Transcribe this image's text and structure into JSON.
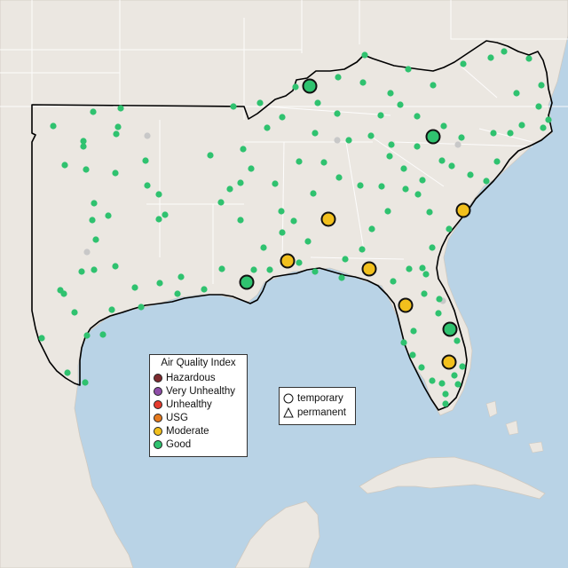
{
  "colors": {
    "water": "#b9d3e6",
    "land": "#ebe7e1",
    "region": "#efebe5",
    "border": "#ffffff",
    "outline": "#000000"
  },
  "legend": {
    "title": "Air Quality Index",
    "items": [
      {
        "label": "Hazardous",
        "color": "#7e2b2f"
      },
      {
        "label": "Very Unhealthy",
        "color": "#8f4ea8"
      },
      {
        "label": "Unhealthy",
        "color": "#e53b2e"
      },
      {
        "label": "USG",
        "color": "#e57a1e"
      },
      {
        "label": "Moderate",
        "color": "#f2c01d"
      },
      {
        "label": "Good",
        "color": "#2fc26f"
      }
    ]
  },
  "shape_legend": {
    "items": [
      {
        "label": "temporary",
        "icon": "circle-icon"
      },
      {
        "label": "permanent",
        "icon": "triangle-icon"
      }
    ]
  },
  "monitors": {
    "large_moderate": [
      [
        370,
        247
      ],
      [
        324,
        294
      ],
      [
        416,
        303
      ],
      [
        457,
        344
      ],
      [
        522,
        237
      ],
      [
        506,
        408
      ]
    ],
    "large_good": [
      [
        349,
        97
      ],
      [
        488,
        154
      ],
      [
        278,
        318
      ],
      [
        507,
        371
      ]
    ],
    "small_good": [
      [
        411,
        62
      ],
      [
        381,
        87
      ],
      [
        333,
        98
      ],
      [
        358,
        116
      ],
      [
        380,
        128
      ],
      [
        409,
        93
      ],
      [
        460,
        78
      ],
      [
        440,
        105
      ],
      [
        488,
        96
      ],
      [
        522,
        72
      ],
      [
        553,
        65
      ],
      [
        596,
        66
      ],
      [
        568,
        58
      ],
      [
        610,
        96
      ],
      [
        582,
        105
      ],
      [
        607,
        120
      ],
      [
        618,
        135
      ],
      [
        588,
        141
      ],
      [
        556,
        150
      ],
      [
        520,
        155
      ],
      [
        500,
        142
      ],
      [
        470,
        131
      ],
      [
        451,
        118
      ],
      [
        429,
        130
      ],
      [
        418,
        153
      ],
      [
        393,
        158
      ],
      [
        355,
        150
      ],
      [
        318,
        132
      ],
      [
        301,
        144
      ],
      [
        274,
        168
      ],
      [
        283,
        190
      ],
      [
        271,
        206
      ],
      [
        259,
        213
      ],
      [
        249,
        228
      ],
      [
        271,
        248
      ],
      [
        297,
        279
      ],
      [
        318,
        262
      ],
      [
        331,
        249
      ],
      [
        353,
        218
      ],
      [
        382,
        200
      ],
      [
        406,
        209
      ],
      [
        430,
        210
      ],
      [
        457,
        213
      ],
      [
        476,
        203
      ],
      [
        509,
        187
      ],
      [
        530,
        197
      ],
      [
        548,
        204
      ],
      [
        560,
        182
      ],
      [
        575,
        150
      ],
      [
        612,
        144
      ],
      [
        498,
        181
      ],
      [
        455,
        190
      ],
      [
        439,
        176
      ],
      [
        470,
        165
      ],
      [
        441,
        163
      ],
      [
        365,
        183
      ],
      [
        337,
        182
      ],
      [
        310,
        207
      ],
      [
        317,
        238
      ],
      [
        347,
        272
      ],
      [
        389,
        292
      ],
      [
        408,
        281
      ],
      [
        419,
        258
      ],
      [
        437,
        238
      ],
      [
        471,
        219
      ],
      [
        484,
        239
      ],
      [
        506,
        258
      ],
      [
        487,
        279
      ],
      [
        476,
        302
      ],
      [
        478,
        331
      ],
      [
        480,
        309
      ],
      [
        461,
        303
      ],
      [
        443,
        317
      ],
      [
        385,
        313
      ],
      [
        355,
        306
      ],
      [
        337,
        296
      ],
      [
        304,
        304
      ],
      [
        286,
        304
      ],
      [
        250,
        303
      ],
      [
        230,
        326
      ],
      [
        204,
        312
      ],
      [
        180,
        319
      ],
      [
        152,
        324
      ],
      [
        130,
        300
      ],
      [
        106,
        304
      ],
      [
        92,
        306
      ],
      [
        72,
        331
      ],
      [
        68,
        327
      ],
      [
        47,
        381
      ],
      [
        76,
        420
      ],
      [
        96,
        431
      ],
      [
        116,
        377
      ],
      [
        98,
        378
      ],
      [
        84,
        352
      ],
      [
        126,
        349
      ],
      [
        159,
        346
      ],
      [
        200,
        331
      ],
      [
        179,
        247
      ],
      [
        186,
        242
      ],
      [
        166,
        209
      ],
      [
        179,
        219
      ],
      [
        130,
        195
      ],
      [
        97,
        191
      ],
      [
        73,
        186
      ],
      [
        94,
        165
      ],
      [
        94,
        159
      ],
      [
        131,
        151
      ],
      [
        133,
        143
      ],
      [
        136,
        122
      ],
      [
        105,
        126
      ],
      [
        60,
        142
      ],
      [
        106,
        229
      ],
      [
        104,
        248
      ],
      [
        122,
        243
      ],
      [
        108,
        270
      ],
      [
        466,
        373
      ],
      [
        455,
        386
      ],
      [
        465,
        400
      ],
      [
        475,
        414
      ],
      [
        487,
        429
      ],
      [
        502,
        444
      ],
      [
        516,
        433
      ],
      [
        512,
        423
      ],
      [
        521,
        413
      ],
      [
        498,
        432
      ],
      [
        502,
        455
      ],
      [
        515,
        384
      ],
      [
        494,
        353
      ],
      [
        495,
        337
      ],
      [
        263,
        120
      ],
      [
        293,
        116
      ],
      [
        237,
        175
      ],
      [
        164,
        181
      ]
    ],
    "small_gray": [
      [
        166,
        153
      ],
      [
        98,
        284
      ],
      [
        516,
        163
      ],
      [
        499,
        339
      ],
      [
        380,
        158
      ]
    ]
  }
}
